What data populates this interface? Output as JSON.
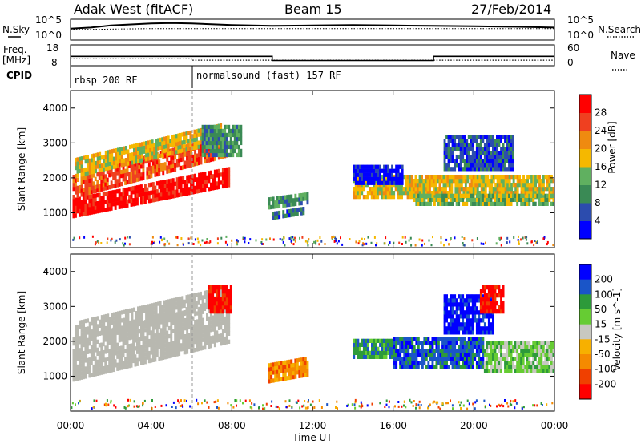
{
  "header": {
    "station": "Adak West (fitACF)",
    "beam": "Beam 15",
    "date": "27/Feb/2014"
  },
  "x_axis": {
    "label": "Time UT",
    "ticks": [
      "00:00",
      "04:00",
      "08:00",
      "12:00",
      "16:00",
      "20:00",
      "00:00"
    ]
  },
  "colors": {
    "power": [
      "#0000ff",
      "#2c4cae",
      "#3a8a55",
      "#60b060",
      "#f5b800",
      "#ef8a10",
      "#ef4020",
      "#ff0000"
    ],
    "velocity": [
      "#ff0000",
      "#f04000",
      "#f58a00",
      "#f7b000",
      "#c8c8c0",
      "#66cc33",
      "#2d9a3a",
      "#1a55c8",
      "#0000ff"
    ],
    "ground_scatter": "#b8b8b0"
  },
  "chart_data": [
    {
      "type": "line",
      "panel": "noise",
      "left_label": "N.Sky",
      "right_label": "N.Search",
      "left_ticks": [
        "10^5",
        "10^0"
      ],
      "right_ticks": [
        "10^5",
        "10^0"
      ],
      "series": [
        {
          "style": "solid",
          "points": [
            [
              0,
              0.55
            ],
            [
              1,
              0.6
            ],
            [
              2,
              0.7
            ],
            [
              3,
              0.75
            ],
            [
              4,
              0.8
            ],
            [
              5,
              0.82
            ],
            [
              6,
              0.8
            ],
            [
              8,
              0.72
            ],
            [
              10,
              0.68
            ],
            [
              12,
              0.7
            ],
            [
              14,
              0.72
            ],
            [
              16,
              0.7
            ],
            [
              18,
              0.68
            ],
            [
              20,
              0.66
            ],
            [
              22,
              0.64
            ],
            [
              24,
              0.6
            ]
          ]
        },
        {
          "style": "dotted",
          "points": [
            [
              0,
              0.5
            ],
            [
              4,
              0.55
            ],
            [
              8,
              0.55
            ],
            [
              12,
              0.55
            ],
            [
              16,
              0.55
            ],
            [
              20,
              0.55
            ],
            [
              24,
              0.55
            ]
          ]
        }
      ]
    },
    {
      "type": "line",
      "panel": "frequency",
      "left_label_top": "Freq.",
      "left_label_bottom": "[MHz]",
      "right_label": "Nave",
      "left_ticks": [
        "18",
        "8"
      ],
      "right_ticks": [
        "60",
        "0"
      ],
      "series": [
        {
          "name": "Freq.",
          "style": "solid",
          "points": [
            [
              0,
              12.5
            ],
            [
              10,
              12.5
            ],
            [
              10,
              10.5
            ],
            [
              18,
              10.5
            ],
            [
              18,
              12.5
            ],
            [
              24,
              12.5
            ]
          ]
        },
        {
          "name": "Nave",
          "style": "dotted",
          "points": [
            [
              0,
              20
            ],
            [
              6,
              20
            ],
            [
              6,
              16
            ],
            [
              24,
              16
            ]
          ]
        }
      ]
    },
    {
      "type": "table",
      "panel": "cpid",
      "label": "CPID",
      "segments": [
        {
          "start": 0,
          "end": 6,
          "text": "rbsp 200 RF"
        },
        {
          "start": 6,
          "end": 24,
          "text": "normalsound (fast) 157 RF"
        }
      ]
    },
    {
      "type": "heatmap",
      "panel": "power",
      "ylabel": "Slant Range [km]",
      "yticks": [
        1000,
        2000,
        3000,
        4000
      ],
      "ylim": [
        0,
        4500
      ],
      "xlim": [
        0,
        24
      ],
      "colorbar": {
        "label": "Power [dB]",
        "ticks": [
          4,
          8,
          12,
          16,
          20,
          24,
          28
        ],
        "range": [
          0,
          32
        ]
      },
      "regions": [
        {
          "t0": 0.1,
          "t1": 7.9,
          "r0": 850,
          "r1": 1400,
          "rise": 900,
          "level": 7
        },
        {
          "t0": 0.1,
          "t1": 7.8,
          "r0": 1400,
          "r1": 2000,
          "rise": 1200,
          "level": 6
        },
        {
          "t0": 0.2,
          "t1": 7.5,
          "r0": 2000,
          "r1": 2500,
          "rise": 1000,
          "level": 4
        },
        {
          "t0": 6.5,
          "t1": 8.5,
          "r0": 2600,
          "r1": 3500,
          "rise": 0,
          "level": 2
        },
        {
          "t0": 9.8,
          "t1": 11.8,
          "r0": 1100,
          "r1": 1400,
          "rise": 150,
          "level": 2
        },
        {
          "t0": 10.0,
          "t1": 11.6,
          "r0": 800,
          "r1": 1000,
          "rise": 150,
          "level": 1
        },
        {
          "t0": 14.0,
          "t1": 24.0,
          "r0": 1400,
          "r1": 2000,
          "rise": 0,
          "level": 4
        },
        {
          "t0": 17.0,
          "t1": 24.0,
          "r0": 1200,
          "r1": 1500,
          "rise": 0,
          "level": 3
        },
        {
          "t0": 14.0,
          "t1": 16.5,
          "r0": 1800,
          "r1": 2300,
          "rise": 0,
          "level": 0
        },
        {
          "t0": 18.5,
          "t1": 22.0,
          "r0": 2200,
          "r1": 3200,
          "rise": 0,
          "level": 1
        }
      ]
    },
    {
      "type": "heatmap",
      "panel": "velocity",
      "ylabel": "Slant Range [km]",
      "yticks": [
        1000,
        2000,
        3000,
        4000
      ],
      "ylim": [
        0,
        4500
      ],
      "xlim": [
        0,
        24
      ],
      "colorbar": {
        "label": "Velocity [m s^-1]",
        "ticks": [
          200,
          100,
          50,
          15,
          -15,
          -50,
          -100,
          -200
        ]
      },
      "regions": [
        {
          "t0": 0.1,
          "t1": 7.9,
          "r0": 850,
          "r1": 2000,
          "rise": 1100,
          "level": "gs"
        },
        {
          "t0": 0.2,
          "t1": 7.5,
          "r0": 2000,
          "r1": 2500,
          "rise": 1000,
          "level": "gs"
        },
        {
          "t0": 6.8,
          "t1": 8.0,
          "r0": 2800,
          "r1": 3500,
          "rise": 0,
          "level": 0
        },
        {
          "t0": 9.8,
          "t1": 11.8,
          "r0": 800,
          "r1": 1300,
          "rise": 200,
          "level": 2
        },
        {
          "t0": 14.0,
          "t1": 16.0,
          "r0": 1500,
          "r1": 2000,
          "rise": 0,
          "level": 6
        },
        {
          "t0": 16.0,
          "t1": 20.5,
          "r0": 1200,
          "r1": 2100,
          "rise": 0,
          "level": 7
        },
        {
          "t0": 20.5,
          "t1": 24.0,
          "r0": 1100,
          "r1": 2000,
          "rise": 0,
          "level": 5
        },
        {
          "t0": 18.5,
          "t1": 21.0,
          "r0": 2200,
          "r1": 3300,
          "rise": 0,
          "level": 8
        },
        {
          "t0": 20.3,
          "t1": 21.5,
          "r0": 2800,
          "r1": 3500,
          "rise": 0,
          "level": 0
        }
      ]
    }
  ]
}
